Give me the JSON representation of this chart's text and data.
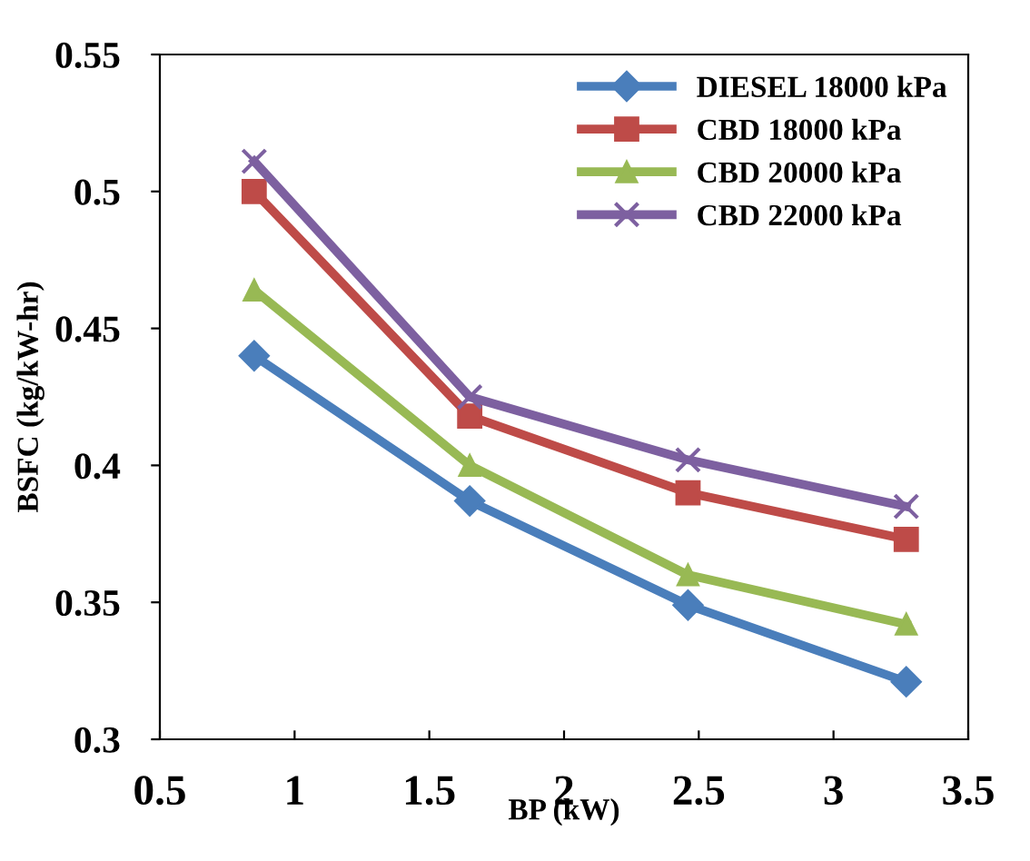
{
  "chart_data": {
    "type": "line",
    "xlabel": "BP (kW)",
    "ylabel": "BSFC (kg/kW-hr)",
    "x": [
      0.85,
      1.65,
      2.46,
      3.27
    ],
    "series": [
      {
        "name": "DIESEL 18000 kPa",
        "color": "#4a7ebb",
        "marker": "diamond",
        "values": [
          0.44,
          0.387,
          0.349,
          0.321
        ]
      },
      {
        "name": "CBD 18000 kPa",
        "color": "#be4b48",
        "marker": "square",
        "values": [
          0.5,
          0.418,
          0.39,
          0.373
        ]
      },
      {
        "name": "CBD 20000 kPa",
        "color": "#98b954",
        "marker": "triangle",
        "values": [
          0.464,
          0.4,
          0.36,
          0.342
        ]
      },
      {
        "name": "CBD 22000 kPa",
        "color": "#7d60a0",
        "marker": "cross",
        "values": [
          0.511,
          0.425,
          0.402,
          0.385
        ]
      }
    ],
    "xlim": [
      0.5,
      3.5
    ],
    "xticks": [
      0.5,
      1,
      1.5,
      2,
      2.5,
      3,
      3.5
    ],
    "ylim": [
      0.3,
      0.55
    ],
    "yticks": [
      0.3,
      0.35,
      0.4,
      0.45,
      0.5,
      0.55
    ],
    "grid": false,
    "legend": "top right",
    "line_style": "solid"
  }
}
